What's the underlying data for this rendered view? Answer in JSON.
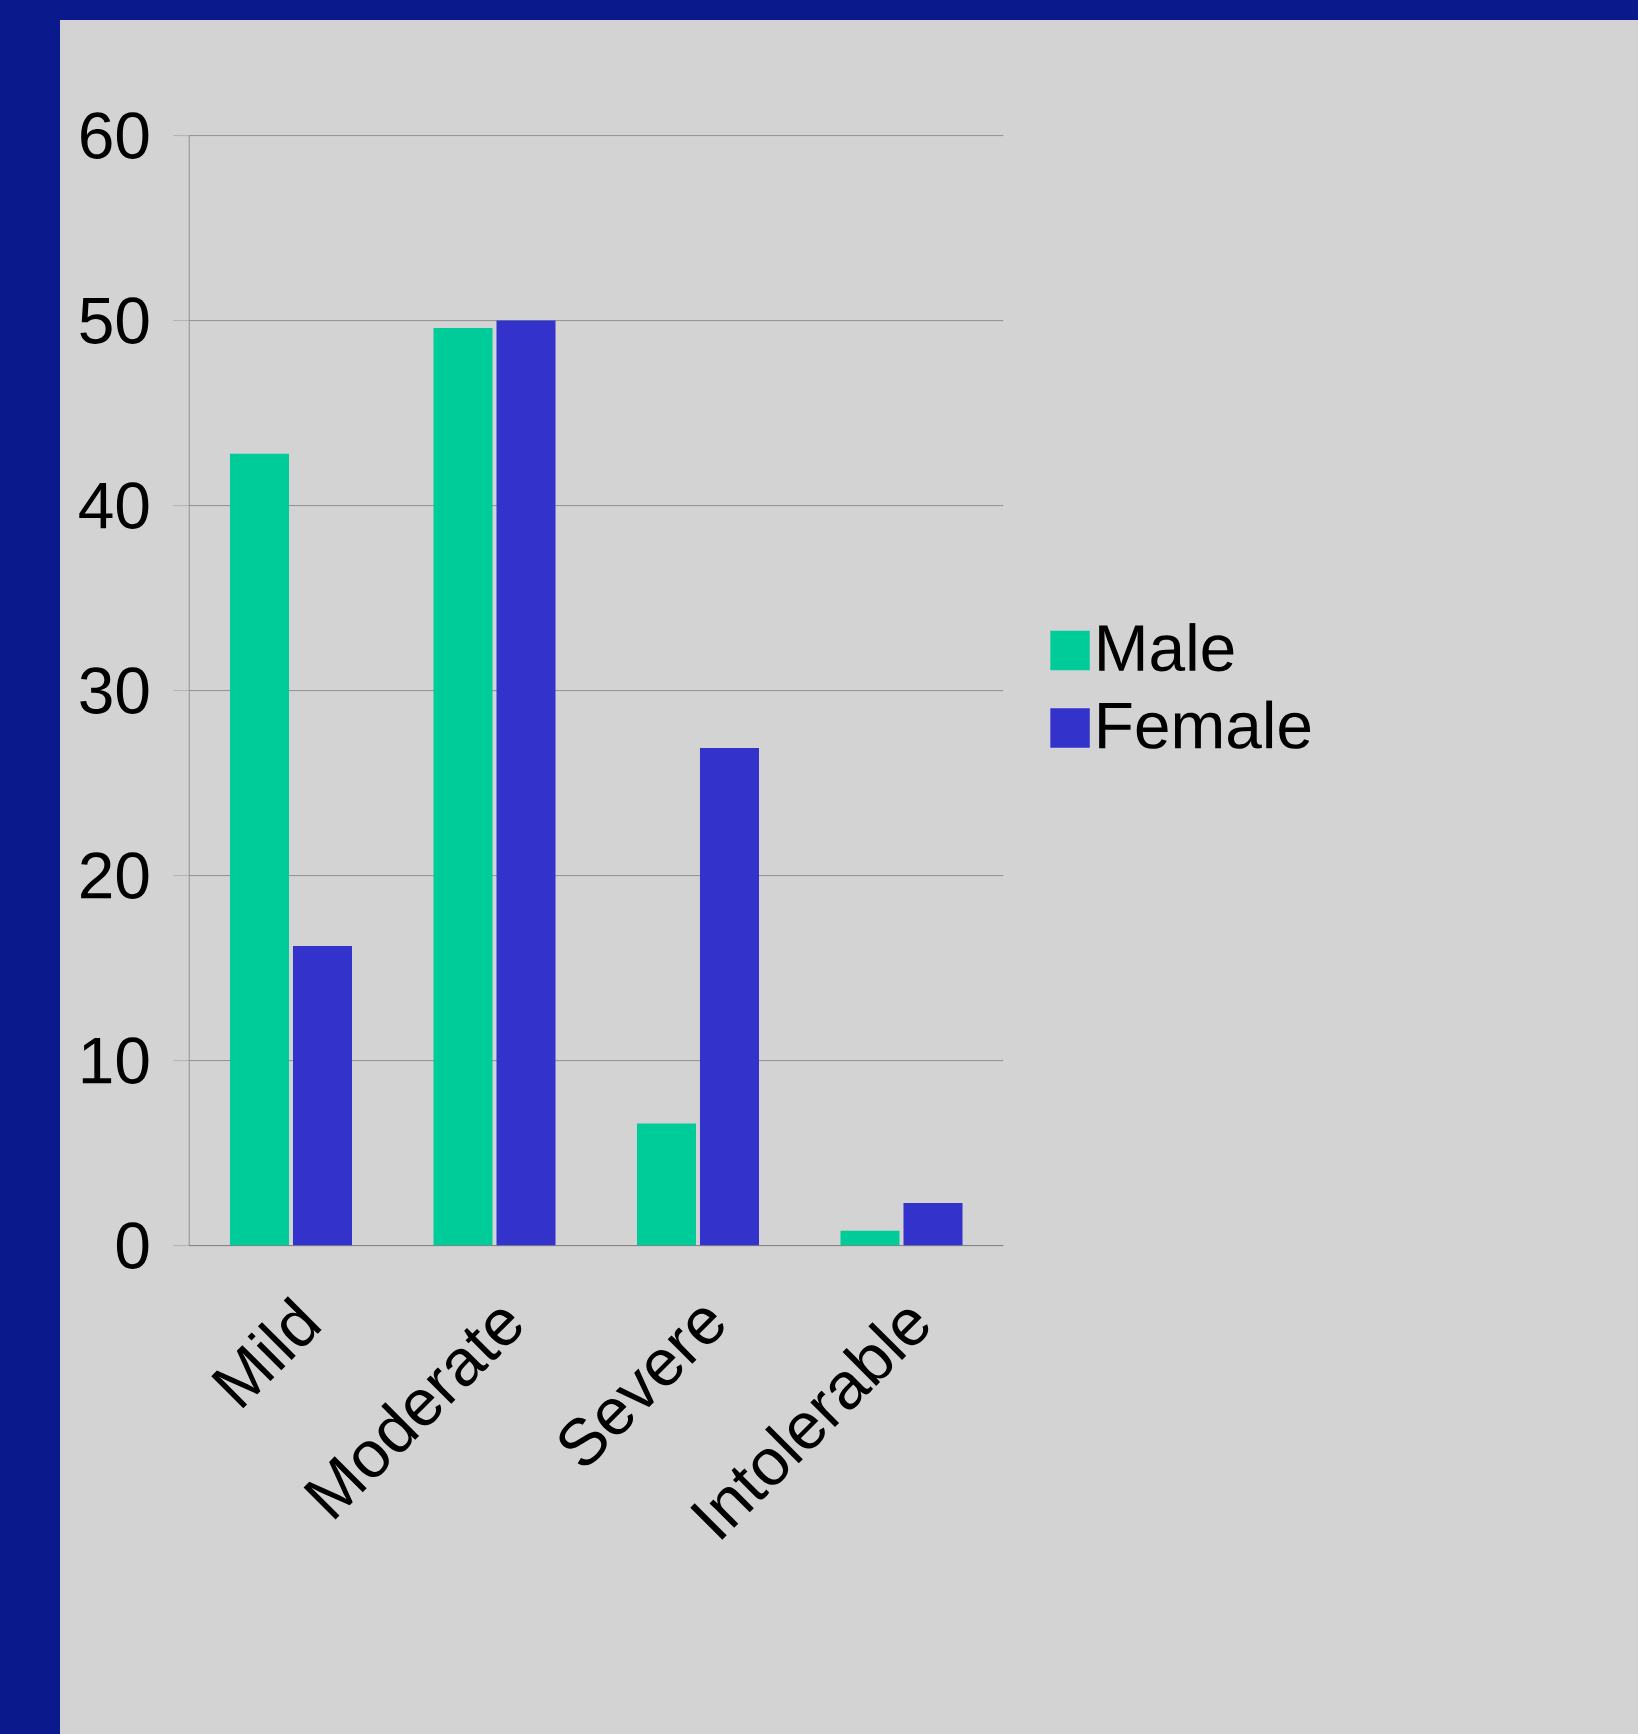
{
  "chart_data": {
    "type": "bar",
    "categories": [
      "Mild",
      "Moderate",
      "Severe",
      "Intolerable"
    ],
    "series": [
      {
        "name": "Male",
        "color": "#00cc99",
        "values": [
          42.8,
          49.6,
          6.6,
          0.8
        ]
      },
      {
        "name": "Female",
        "color": "#3333cc",
        "values": [
          16.2,
          50,
          26.9,
          2.3
        ]
      }
    ],
    "ylim": [
      0,
      60
    ],
    "yticks": [
      0,
      10,
      20,
      30,
      40,
      50,
      60
    ],
    "grid": "y",
    "legend": "right"
  }
}
